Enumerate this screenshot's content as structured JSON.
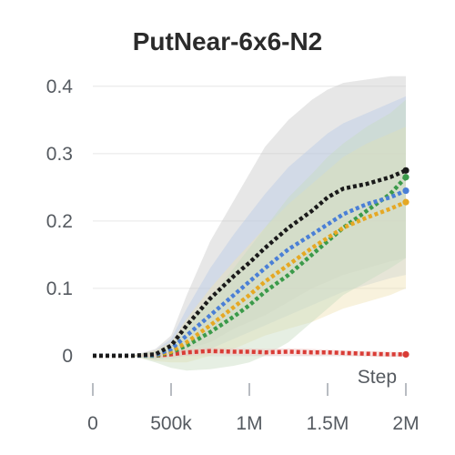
{
  "chart_data": {
    "type": "line",
    "title": "PutNear-6x6-N2",
    "xlabel": "Step",
    "ylabel": "",
    "xlim": [
      0,
      2000000
    ],
    "ylim": [
      -0.015,
      0.42
    ],
    "x_ticks": [
      {
        "value": 0,
        "label": "0"
      },
      {
        "value": 500000,
        "label": "500k"
      },
      {
        "value": 1000000,
        "label": "1M"
      },
      {
        "value": 1500000,
        "label": "1.5M"
      },
      {
        "value": 2000000,
        "label": "2M"
      }
    ],
    "y_ticks": [
      {
        "value": 0,
        "label": "0"
      },
      {
        "value": 0.1,
        "label": "0.1"
      },
      {
        "value": 0.2,
        "label": "0.2"
      },
      {
        "value": 0.3,
        "label": "0.3"
      },
      {
        "value": 0.4,
        "label": "0.4"
      }
    ],
    "grid": true,
    "legend": "none",
    "x": [
      0,
      250000,
      400000,
      500000,
      600000,
      750000,
      900000,
      1000000,
      1100000,
      1250000,
      1400000,
      1500000,
      1600000,
      1750000,
      1900000,
      2000000
    ],
    "series": [
      {
        "color": "#1a1a1a",
        "band_color": "#c9c9c9",
        "values": [
          0,
          0,
          0.002,
          0.015,
          0.045,
          0.085,
          0.118,
          0.138,
          0.16,
          0.19,
          0.215,
          0.235,
          0.248,
          0.255,
          0.265,
          0.275
        ],
        "upper": [
          0,
          0,
          0.01,
          0.03,
          0.09,
          0.17,
          0.23,
          0.27,
          0.31,
          0.35,
          0.38,
          0.395,
          0.405,
          0.41,
          0.415,
          0.415
        ],
        "lower": [
          0,
          0,
          -0.005,
          0.0,
          0.01,
          0.02,
          0.04,
          0.05,
          0.06,
          0.08,
          0.1,
          0.11,
          0.12,
          0.13,
          0.14,
          0.145
        ]
      },
      {
        "color": "#4a7fd6",
        "band_color": "#b9c9e6",
        "values": [
          0,
          0,
          0.001,
          0.01,
          0.03,
          0.06,
          0.09,
          0.11,
          0.13,
          0.158,
          0.18,
          0.195,
          0.21,
          0.225,
          0.235,
          0.245
        ],
        "upper": [
          0,
          0,
          0.008,
          0.025,
          0.07,
          0.13,
          0.18,
          0.21,
          0.24,
          0.28,
          0.31,
          0.33,
          0.345,
          0.36,
          0.375,
          0.385
        ],
        "lower": [
          0,
          0,
          -0.006,
          -0.005,
          0.0,
          0.01,
          0.025,
          0.035,
          0.045,
          0.06,
          0.075,
          0.085,
          0.095,
          0.105,
          0.115,
          0.12
        ]
      },
      {
        "color": "#e5a824",
        "band_color": "#efe2b4",
        "values": [
          0,
          0,
          0.001,
          0.006,
          0.02,
          0.045,
          0.072,
          0.09,
          0.11,
          0.135,
          0.16,
          0.175,
          0.19,
          0.205,
          0.218,
          0.228
        ],
        "upper": [
          0,
          0,
          0.008,
          0.02,
          0.055,
          0.1,
          0.14,
          0.165,
          0.19,
          0.225,
          0.255,
          0.275,
          0.295,
          0.315,
          0.33,
          0.34
        ],
        "lower": [
          0,
          0,
          -0.008,
          -0.01,
          -0.01,
          0.0,
          0.01,
          0.02,
          0.03,
          0.04,
          0.05,
          0.06,
          0.07,
          0.08,
          0.09,
          0.1
        ]
      },
      {
        "color": "#3b9a4a",
        "band_color": "#c7dcc2",
        "values": [
          0,
          0,
          0.0,
          0.005,
          0.015,
          0.035,
          0.058,
          0.075,
          0.095,
          0.12,
          0.15,
          0.17,
          0.19,
          0.215,
          0.24,
          0.265
        ],
        "upper": [
          0,
          0,
          0.006,
          0.015,
          0.045,
          0.085,
          0.13,
          0.16,
          0.19,
          0.235,
          0.27,
          0.295,
          0.315,
          0.34,
          0.36,
          0.38
        ],
        "lower": [
          0,
          0,
          -0.01,
          -0.018,
          -0.022,
          -0.02,
          -0.015,
          -0.01,
          0.0,
          0.02,
          0.05,
          0.07,
          0.09,
          0.11,
          0.13,
          0.145
        ]
      },
      {
        "color": "#d93c36",
        "band_color": "#f0c4c0",
        "values": [
          0,
          0,
          0.0,
          0.002,
          0.005,
          0.007,
          0.006,
          0.006,
          0.005,
          0.006,
          0.005,
          0.005,
          0.004,
          0.003,
          0.002,
          0.002
        ],
        "upper": [
          0,
          0,
          0.003,
          0.006,
          0.01,
          0.012,
          0.011,
          0.011,
          0.01,
          0.011,
          0.01,
          0.009,
          0.008,
          0.007,
          0.006,
          0.005
        ],
        "lower": [
          0,
          0,
          -0.003,
          -0.002,
          0.0,
          0.002,
          0.001,
          0.001,
          0.0,
          0.001,
          0.0,
          0.001,
          0.0,
          -0.001,
          -0.002,
          -0.001
        ]
      }
    ]
  }
}
